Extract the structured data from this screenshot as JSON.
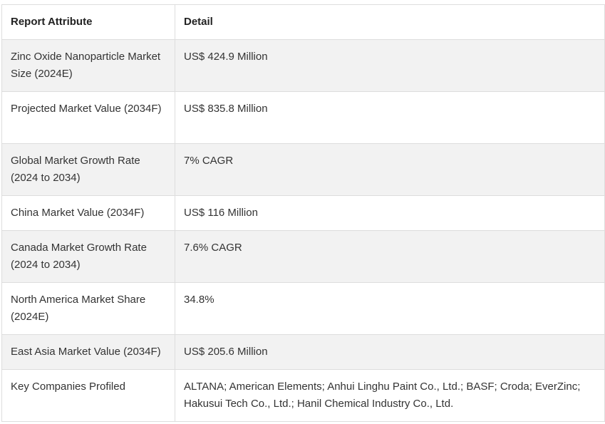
{
  "table": {
    "headers": {
      "attribute": "Report Attribute",
      "detail": "Detail"
    },
    "rows": [
      {
        "attribute": "Zinc Oxide Nanoparticle Market Size (2024E)",
        "detail": "US$ 424.9 Million"
      },
      {
        "attribute": "Projected Market Value (2034F)",
        "detail": "US$ 835.8 Million"
      },
      {
        "attribute": "Global Market Growth Rate (2024 to 2034)",
        "detail": "7% CAGR"
      },
      {
        "attribute": "China Market Value (2034F)",
        "detail": "US$ 116 Million"
      },
      {
        "attribute": "Canada Market Growth Rate (2024 to 2034)",
        "detail": "7.6% CAGR"
      },
      {
        "attribute": "North America Market Share (2024E)",
        "detail": "34.8%"
      },
      {
        "attribute": "East Asia Market Value (2034F)",
        "detail": "US$ 205.6 Million"
      },
      {
        "attribute": "Key Companies Profiled",
        "detail": "ALTANA; American Elements; Anhui Linghu Paint Co., Ltd.; BASF; Croda; EverZinc; Hakusui Tech Co., Ltd.; Hanil Chemical Industry Co., Ltd."
      }
    ]
  }
}
